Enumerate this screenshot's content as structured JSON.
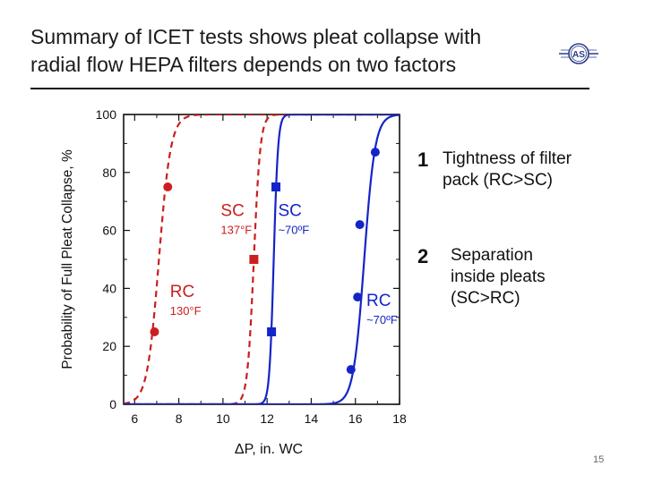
{
  "slide": {
    "title_line1": "Summary of ICET tests shows pleat collapse with",
    "title_line2": "radial flow HEPA filters depends on two factors",
    "logo_text": "AS",
    "page_number": "15",
    "points": [
      {
        "num": "1",
        "line1": "Tightness of filter",
        "line2": "pack (RC>SC)",
        "line3": ""
      },
      {
        "num": "2",
        "line1": "Separation",
        "line2": "inside pleats",
        "line3": "(SC>RC)"
      }
    ]
  },
  "colors": {
    "red": "#cc1e1e",
    "blue": "#1424c8",
    "axis": "#111111"
  },
  "chart_data": {
    "type": "scatter",
    "xlabel": "ΔP, in. WC",
    "ylabel": "Probability of Full Pleat Collapse, %",
    "xlim": [
      5.5,
      18
    ],
    "ylim": [
      0,
      100
    ],
    "xticks": [
      6,
      8,
      10,
      12,
      14,
      16,
      18
    ],
    "yticks": [
      0,
      20,
      40,
      60,
      80,
      100
    ],
    "series": [
      {
        "name": "RC",
        "sub": "130°F",
        "color": "#cc1e1e",
        "marker": "circle",
        "line": "dashed",
        "x": [
          6.9,
          7.5
        ],
        "y": [
          25,
          75
        ],
        "curve_mid": 7.1,
        "curve_k": 2.2
      },
      {
        "name": "SC",
        "sub": "137°F",
        "color": "#cc1e1e",
        "marker": "square",
        "line": "dashed",
        "x": [
          11.4
        ],
        "y": [
          50
        ],
        "curve_mid": 11.4,
        "curve_k": 4.0
      },
      {
        "name": "SC",
        "sub": "~70ºF",
        "color": "#1424c8",
        "marker": "square",
        "line": "solid",
        "x": [
          12.2,
          12.4
        ],
        "y": [
          25,
          75
        ],
        "curve_mid": 12.3,
        "curve_k": 6.0
      },
      {
        "name": "RC",
        "sub": "~70ºF",
        "color": "#1424c8",
        "marker": "circle",
        "line": "solid",
        "x": [
          15.8,
          16.1,
          16.2,
          16.9
        ],
        "y": [
          12,
          37,
          62,
          87
        ],
        "curve_mid": 16.4,
        "curve_k": 2.4
      }
    ],
    "labels": [
      {
        "text": "SC",
        "sub": "137°F",
        "color": "#cc1e1e",
        "x": 9.9,
        "y": 65
      },
      {
        "text": "SC",
        "sub": "~70ºF",
        "color": "#1424c8",
        "x": 12.5,
        "y": 65
      },
      {
        "text": "RC",
        "sub": "130°F",
        "color": "#cc1e1e",
        "x": 7.6,
        "y": 37
      },
      {
        "text": "RC",
        "sub": "~70ºF",
        "color": "#1424c8",
        "x": 16.5,
        "y": 34
      }
    ]
  }
}
